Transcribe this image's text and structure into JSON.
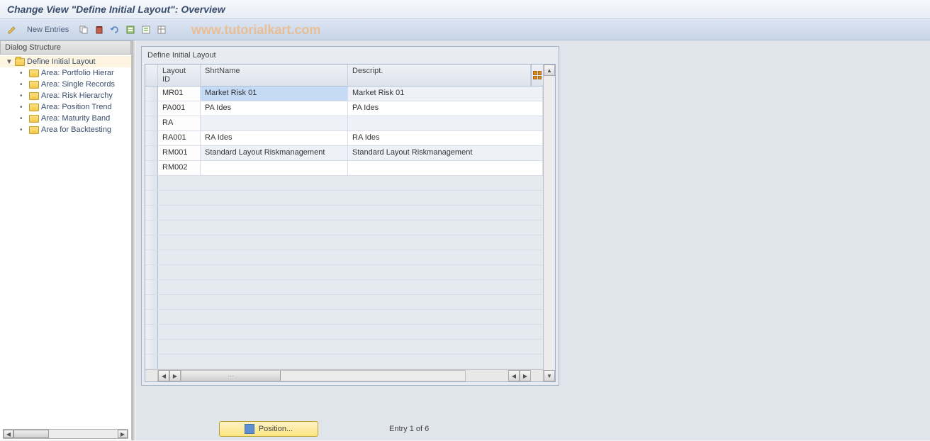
{
  "title": "Change View \"Define Initial Layout\": Overview",
  "toolbar": {
    "new_entries_label": "New Entries"
  },
  "watermark": "www.tutorialkart.com",
  "left_panel": {
    "header": "Dialog Structure",
    "root_item": "Define Initial Layout",
    "children": [
      "Area: Portfolio Hierar",
      "Area: Single Records",
      "Area: Risk Hierarchy",
      "Area: Position Trend",
      "Area: Maturity Band",
      "Area for Backtesting"
    ]
  },
  "table": {
    "title": "Define Initial Layout",
    "columns": {
      "layout_id": "Layout ID",
      "shortname": "ShrtName",
      "descript": "Descript."
    },
    "rows": [
      {
        "layout_id": "MR01",
        "shortname": "Market Risk 01",
        "descript": "Market Risk 01",
        "highlighted": true
      },
      {
        "layout_id": "PA001",
        "shortname": "PA Ides",
        "descript": "PA Ides"
      },
      {
        "layout_id": "RA",
        "shortname": "",
        "descript": ""
      },
      {
        "layout_id": "RA001",
        "shortname": "RA Ides",
        "descript": "RA Ides"
      },
      {
        "layout_id": "RM001",
        "shortname": "Standard Layout Riskmanagement",
        "descript": "Standard Layout Riskmanagement"
      },
      {
        "layout_id": "RM002",
        "shortname": "",
        "descript": ""
      }
    ],
    "empty_rows": 13
  },
  "bottom": {
    "position_btn": "Position...",
    "entry_label": "Entry 1 of 6"
  },
  "colors": {
    "title_bg_top": "#f5f8fc",
    "title_bg_bottom": "#e8edf5",
    "toolbar_bg_top": "#dce5f2",
    "toolbar_bg_bottom": "#c8d5e8",
    "panel_bg": "#e0e5ec",
    "highlight": "#c5daf5",
    "folder": "#f0c850",
    "position_btn": "#fce680"
  }
}
